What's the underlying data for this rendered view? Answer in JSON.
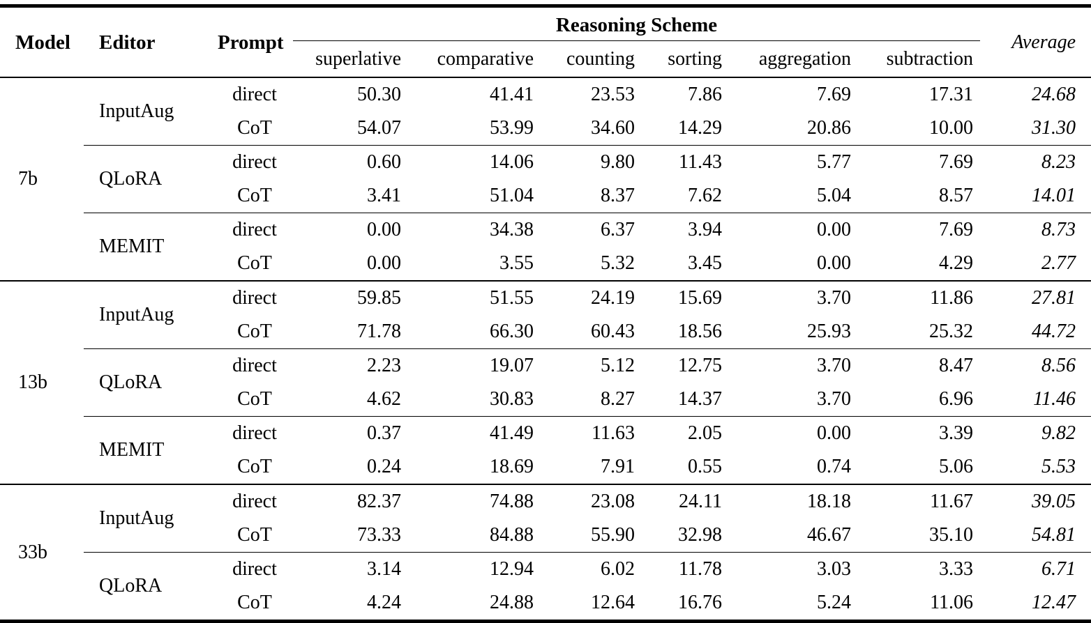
{
  "header": {
    "model": "Model",
    "editor": "Editor",
    "prompt": "Prompt",
    "group": "Reasoning Scheme",
    "schemes": [
      "superlative",
      "comparative",
      "counting",
      "sorting",
      "aggregation",
      "subtraction"
    ],
    "average": "Average"
  },
  "groups": [
    {
      "model": "7b",
      "editors": [
        {
          "name": "InputAug",
          "rows": [
            {
              "prompt": "direct",
              "values": [
                "50.30",
                "41.41",
                "23.53",
                "7.86",
                "7.69",
                "17.31"
              ],
              "average": "24.68"
            },
            {
              "prompt": "CoT",
              "values": [
                "54.07",
                "53.99",
                "34.60",
                "14.29",
                "20.86",
                "10.00"
              ],
              "average": "31.30"
            }
          ]
        },
        {
          "name": "QLoRA",
          "rows": [
            {
              "prompt": "direct",
              "values": [
                "0.60",
                "14.06",
                "9.80",
                "11.43",
                "5.77",
                "7.69"
              ],
              "average": "8.23"
            },
            {
              "prompt": "CoT",
              "values": [
                "3.41",
                "51.04",
                "8.37",
                "7.62",
                "5.04",
                "8.57"
              ],
              "average": "14.01"
            }
          ]
        },
        {
          "name": "MEMIT",
          "rows": [
            {
              "prompt": "direct",
              "values": [
                "0.00",
                "34.38",
                "6.37",
                "3.94",
                "0.00",
                "7.69"
              ],
              "average": "8.73"
            },
            {
              "prompt": "CoT",
              "values": [
                "0.00",
                "3.55",
                "5.32",
                "3.45",
                "0.00",
                "4.29"
              ],
              "average": "2.77"
            }
          ]
        }
      ]
    },
    {
      "model": "13b",
      "editors": [
        {
          "name": "InputAug",
          "rows": [
            {
              "prompt": "direct",
              "values": [
                "59.85",
                "51.55",
                "24.19",
                "15.69",
                "3.70",
                "11.86"
              ],
              "average": "27.81"
            },
            {
              "prompt": "CoT",
              "values": [
                "71.78",
                "66.30",
                "60.43",
                "18.56",
                "25.93",
                "25.32"
              ],
              "average": "44.72"
            }
          ]
        },
        {
          "name": "QLoRA",
          "rows": [
            {
              "prompt": "direct",
              "values": [
                "2.23",
                "19.07",
                "5.12",
                "12.75",
                "3.70",
                "8.47"
              ],
              "average": "8.56"
            },
            {
              "prompt": "CoT",
              "values": [
                "4.62",
                "30.83",
                "8.27",
                "14.37",
                "3.70",
                "6.96"
              ],
              "average": "11.46"
            }
          ]
        },
        {
          "name": "MEMIT",
          "rows": [
            {
              "prompt": "direct",
              "values": [
                "0.37",
                "41.49",
                "11.63",
                "2.05",
                "0.00",
                "3.39"
              ],
              "average": "9.82"
            },
            {
              "prompt": "CoT",
              "values": [
                "0.24",
                "18.69",
                "7.91",
                "0.55",
                "0.74",
                "5.06"
              ],
              "average": "5.53"
            }
          ]
        }
      ]
    },
    {
      "model": "33b",
      "editors": [
        {
          "name": "InputAug",
          "rows": [
            {
              "prompt": "direct",
              "values": [
                "82.37",
                "74.88",
                "23.08",
                "24.11",
                "18.18",
                "11.67"
              ],
              "average": "39.05"
            },
            {
              "prompt": "CoT",
              "values": [
                "73.33",
                "84.88",
                "55.90",
                "32.98",
                "46.67",
                "35.10"
              ],
              "average": "54.81"
            }
          ]
        },
        {
          "name": "QLoRA",
          "rows": [
            {
              "prompt": "direct",
              "values": [
                "3.14",
                "12.94",
                "6.02",
                "11.78",
                "3.03",
                "3.33"
              ],
              "average": "6.71"
            },
            {
              "prompt": "CoT",
              "values": [
                "4.24",
                "24.88",
                "12.64",
                "16.76",
                "5.24",
                "11.06"
              ],
              "average": "12.47"
            }
          ]
        }
      ]
    }
  ]
}
